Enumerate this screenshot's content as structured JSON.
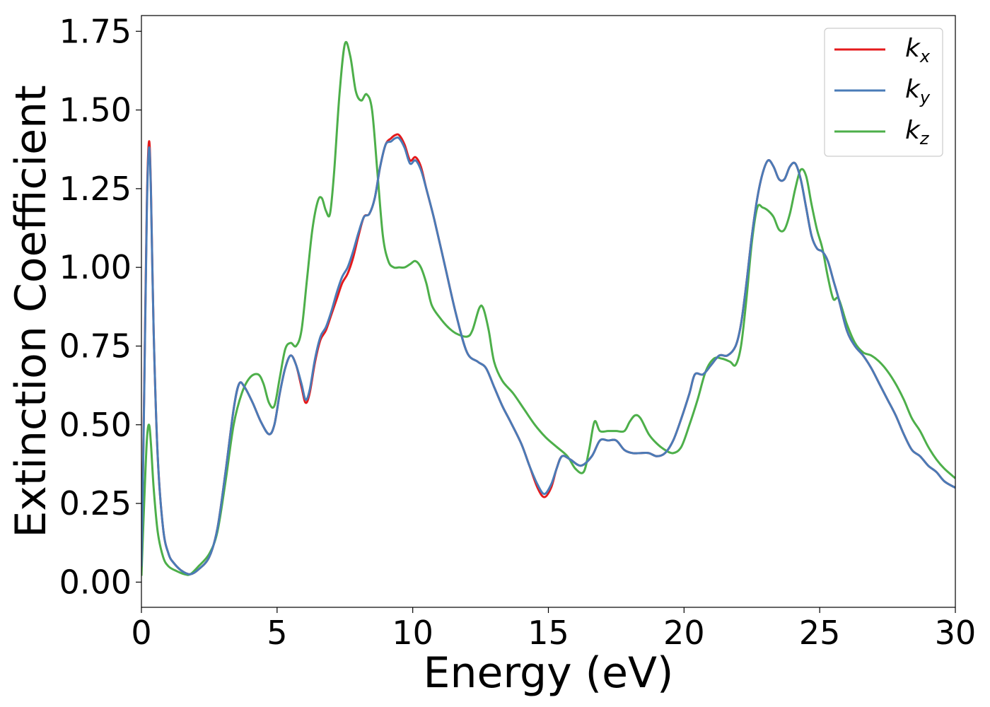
{
  "chart_data": {
    "type": "line",
    "title": "",
    "xlabel": "Energy (eV)",
    "ylabel": "Extinction Coefficient",
    "xlim": [
      0,
      30
    ],
    "ylim": [
      -0.08,
      1.8
    ],
    "xticks": [
      0,
      5,
      10,
      15,
      20,
      25,
      30
    ],
    "xtick_labels": [
      "0",
      "5",
      "10",
      "15",
      "20",
      "25",
      "30"
    ],
    "yticks": [
      0,
      0.25,
      0.5,
      0.75,
      1.0,
      1.25,
      1.5,
      1.75
    ],
    "ytick_labels": [
      "0.00",
      "0.25",
      "0.50",
      "0.75",
      "1.00",
      "1.25",
      "1.50",
      "1.75"
    ],
    "grid": false,
    "legend_position": "top-right",
    "series": [
      {
        "name": "k_x",
        "label_base": "k",
        "label_sub": "x",
        "color": "#e41a1c",
        "x": [
          0,
          0.1,
          0.2,
          0.28,
          0.35,
          0.45,
          0.6,
          0.8,
          1.0,
          1.2,
          1.5,
          1.8,
          2.1,
          2.5,
          2.8,
          3.1,
          3.4,
          3.6,
          3.8,
          4.1,
          4.4,
          4.7,
          4.9,
          5.1,
          5.3,
          5.5,
          5.7,
          5.9,
          6.05,
          6.2,
          6.4,
          6.6,
          6.8,
          7.0,
          7.2,
          7.4,
          7.6,
          7.8,
          8.0,
          8.2,
          8.4,
          8.6,
          8.8,
          9.0,
          9.2,
          9.35,
          9.5,
          9.7,
          9.9,
          10.1,
          10.3,
          10.5,
          10.8,
          11.2,
          11.6,
          12.0,
          12.4,
          12.7,
          13.0,
          13.3,
          13.6,
          14.0,
          14.3,
          14.6,
          14.85,
          15.1,
          15.3,
          15.5,
          15.8,
          16.2,
          16.6,
          16.9,
          17.2,
          17.5,
          17.8,
          18.1,
          18.4,
          18.7,
          19.0,
          19.3,
          19.6,
          19.9,
          20.2,
          20.4,
          20.7,
          21.0,
          21.3,
          21.6,
          21.9,
          22.1,
          22.3,
          22.5,
          22.7,
          22.9,
          23.1,
          23.3,
          23.5,
          23.7,
          23.9,
          24.1,
          24.3,
          24.5,
          24.7,
          24.9,
          25.1,
          25.3,
          25.5,
          25.7,
          26.0,
          26.3,
          26.6,
          26.9,
          27.2,
          27.5,
          27.8,
          28.1,
          28.4,
          28.7,
          29.0,
          29.3,
          29.6,
          30.0
        ],
        "values": [
          0.05,
          0.6,
          1.2,
          1.4,
          1.25,
          0.8,
          0.4,
          0.17,
          0.09,
          0.06,
          0.035,
          0.025,
          0.04,
          0.08,
          0.17,
          0.35,
          0.55,
          0.63,
          0.62,
          0.57,
          0.51,
          0.47,
          0.5,
          0.6,
          0.68,
          0.72,
          0.69,
          0.62,
          0.57,
          0.6,
          0.7,
          0.77,
          0.8,
          0.85,
          0.9,
          0.95,
          0.98,
          1.03,
          1.1,
          1.16,
          1.17,
          1.22,
          1.32,
          1.39,
          1.41,
          1.42,
          1.42,
          1.39,
          1.34,
          1.35,
          1.32,
          1.25,
          1.15,
          1.0,
          0.85,
          0.73,
          0.7,
          0.68,
          0.62,
          0.56,
          0.51,
          0.44,
          0.37,
          0.3,
          0.27,
          0.3,
          0.36,
          0.4,
          0.39,
          0.37,
          0.4,
          0.45,
          0.45,
          0.45,
          0.42,
          0.41,
          0.41,
          0.41,
          0.4,
          0.41,
          0.45,
          0.52,
          0.6,
          0.66,
          0.66,
          0.69,
          0.72,
          0.72,
          0.75,
          0.82,
          0.95,
          1.1,
          1.22,
          1.3,
          1.34,
          1.32,
          1.28,
          1.28,
          1.32,
          1.33,
          1.28,
          1.19,
          1.1,
          1.06,
          1.05,
          1.02,
          0.96,
          0.9,
          0.8,
          0.75,
          0.72,
          0.68,
          0.63,
          0.58,
          0.53,
          0.47,
          0.42,
          0.4,
          0.37,
          0.35,
          0.32,
          0.3
        ]
      },
      {
        "name": "k_y",
        "label_base": "k",
        "label_sub": "y",
        "color": "#4a7bb7",
        "x": [
          0,
          0.1,
          0.2,
          0.28,
          0.35,
          0.45,
          0.6,
          0.8,
          1.0,
          1.2,
          1.5,
          1.8,
          2.1,
          2.5,
          2.8,
          3.1,
          3.4,
          3.6,
          3.8,
          4.1,
          4.4,
          4.7,
          4.9,
          5.1,
          5.3,
          5.5,
          5.7,
          5.9,
          6.05,
          6.2,
          6.4,
          6.6,
          6.8,
          7.0,
          7.2,
          7.4,
          7.6,
          7.8,
          8.0,
          8.2,
          8.4,
          8.6,
          8.8,
          9.0,
          9.2,
          9.35,
          9.5,
          9.7,
          9.9,
          10.1,
          10.3,
          10.5,
          10.8,
          11.2,
          11.6,
          12.0,
          12.4,
          12.7,
          13.0,
          13.3,
          13.6,
          14.0,
          14.3,
          14.6,
          14.85,
          15.1,
          15.3,
          15.5,
          15.8,
          16.2,
          16.6,
          16.9,
          17.2,
          17.5,
          17.8,
          18.1,
          18.4,
          18.7,
          19.0,
          19.3,
          19.6,
          19.9,
          20.2,
          20.4,
          20.7,
          21.0,
          21.3,
          21.6,
          21.9,
          22.1,
          22.3,
          22.5,
          22.7,
          22.9,
          23.1,
          23.3,
          23.5,
          23.7,
          23.9,
          24.1,
          24.3,
          24.5,
          24.7,
          24.9,
          25.1,
          25.3,
          25.5,
          25.7,
          26.0,
          26.3,
          26.6,
          26.9,
          27.2,
          27.5,
          27.8,
          28.1,
          28.4,
          28.7,
          29.0,
          29.3,
          29.6,
          30.0
        ],
        "values": [
          0.05,
          0.58,
          1.18,
          1.38,
          1.24,
          0.8,
          0.4,
          0.17,
          0.09,
          0.06,
          0.035,
          0.025,
          0.04,
          0.08,
          0.17,
          0.35,
          0.55,
          0.63,
          0.62,
          0.57,
          0.51,
          0.47,
          0.5,
          0.6,
          0.68,
          0.72,
          0.69,
          0.63,
          0.58,
          0.61,
          0.71,
          0.78,
          0.81,
          0.86,
          0.92,
          0.97,
          1.0,
          1.05,
          1.11,
          1.16,
          1.17,
          1.22,
          1.32,
          1.39,
          1.4,
          1.41,
          1.41,
          1.38,
          1.33,
          1.34,
          1.31,
          1.25,
          1.15,
          1.0,
          0.85,
          0.73,
          0.7,
          0.68,
          0.62,
          0.56,
          0.51,
          0.44,
          0.37,
          0.31,
          0.28,
          0.31,
          0.36,
          0.4,
          0.39,
          0.37,
          0.4,
          0.45,
          0.45,
          0.45,
          0.42,
          0.41,
          0.41,
          0.41,
          0.4,
          0.41,
          0.45,
          0.52,
          0.6,
          0.66,
          0.66,
          0.69,
          0.72,
          0.72,
          0.75,
          0.82,
          0.95,
          1.1,
          1.22,
          1.3,
          1.34,
          1.32,
          1.28,
          1.28,
          1.32,
          1.33,
          1.28,
          1.19,
          1.1,
          1.06,
          1.05,
          1.02,
          0.96,
          0.9,
          0.8,
          0.75,
          0.72,
          0.68,
          0.63,
          0.58,
          0.53,
          0.47,
          0.42,
          0.4,
          0.37,
          0.35,
          0.32,
          0.3
        ]
      },
      {
        "name": "k_z",
        "label_base": "k",
        "label_sub": "z",
        "color": "#4daf4a",
        "x": [
          0,
          0.1,
          0.2,
          0.28,
          0.35,
          0.45,
          0.6,
          0.8,
          1.0,
          1.3,
          1.6,
          1.8,
          2.1,
          2.5,
          2.8,
          3.1,
          3.4,
          3.7,
          4.0,
          4.3,
          4.5,
          4.7,
          4.9,
          5.1,
          5.3,
          5.5,
          5.7,
          5.9,
          6.1,
          6.3,
          6.5,
          6.65,
          6.8,
          6.95,
          7.1,
          7.3,
          7.5,
          7.7,
          7.9,
          8.1,
          8.3,
          8.5,
          8.7,
          8.9,
          9.1,
          9.3,
          9.5,
          9.7,
          9.9,
          10.1,
          10.3,
          10.5,
          10.7,
          11.0,
          11.3,
          11.6,
          12.0,
          12.2,
          12.45,
          12.6,
          12.8,
          13.0,
          13.3,
          13.7,
          14.1,
          14.5,
          14.9,
          15.3,
          15.7,
          16.0,
          16.3,
          16.5,
          16.7,
          16.9,
          17.2,
          17.5,
          17.8,
          18.0,
          18.2,
          18.4,
          18.7,
          19.0,
          19.3,
          19.6,
          19.9,
          20.2,
          20.5,
          20.8,
          21.1,
          21.4,
          21.7,
          21.9,
          22.1,
          22.3,
          22.5,
          22.7,
          22.9,
          23.1,
          23.3,
          23.5,
          23.7,
          23.9,
          24.1,
          24.3,
          24.5,
          24.7,
          24.9,
          25.1,
          25.3,
          25.5,
          25.7,
          26.0,
          26.3,
          26.6,
          26.9,
          27.2,
          27.5,
          27.8,
          28.1,
          28.4,
          28.7,
          29.0,
          29.3,
          29.6,
          30.0
        ],
        "values": [
          0.02,
          0.25,
          0.45,
          0.5,
          0.44,
          0.3,
          0.16,
          0.08,
          0.05,
          0.035,
          0.025,
          0.025,
          0.05,
          0.09,
          0.16,
          0.32,
          0.5,
          0.6,
          0.65,
          0.66,
          0.63,
          0.57,
          0.56,
          0.65,
          0.74,
          0.76,
          0.75,
          0.8,
          0.96,
          1.12,
          1.21,
          1.22,
          1.18,
          1.17,
          1.3,
          1.55,
          1.71,
          1.67,
          1.56,
          1.53,
          1.55,
          1.5,
          1.3,
          1.1,
          1.02,
          1.0,
          1.0,
          1.0,
          1.01,
          1.02,
          1.0,
          0.95,
          0.88,
          0.84,
          0.81,
          0.79,
          0.78,
          0.8,
          0.87,
          0.87,
          0.8,
          0.7,
          0.64,
          0.6,
          0.55,
          0.5,
          0.46,
          0.43,
          0.4,
          0.36,
          0.35,
          0.42,
          0.51,
          0.48,
          0.48,
          0.48,
          0.48,
          0.51,
          0.53,
          0.52,
          0.47,
          0.44,
          0.42,
          0.41,
          0.43,
          0.5,
          0.58,
          0.67,
          0.71,
          0.71,
          0.7,
          0.69,
          0.75,
          0.9,
          1.08,
          1.19,
          1.19,
          1.18,
          1.16,
          1.12,
          1.12,
          1.17,
          1.25,
          1.31,
          1.29,
          1.2,
          1.12,
          1.06,
          0.97,
          0.9,
          0.9,
          0.82,
          0.76,
          0.73,
          0.72,
          0.7,
          0.67,
          0.63,
          0.58,
          0.52,
          0.48,
          0.43,
          0.39,
          0.36,
          0.33
        ]
      }
    ]
  }
}
